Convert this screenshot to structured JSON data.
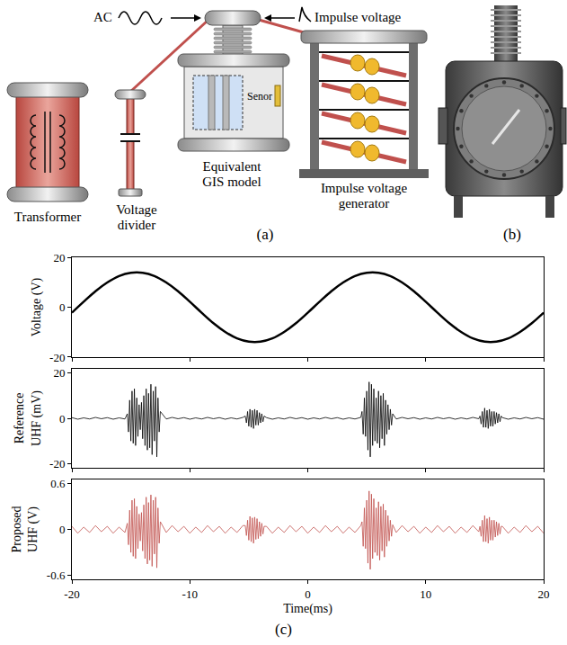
{
  "diagram": {
    "panel_label": "(a)",
    "inputs": {
      "ac": "AC",
      "impulse": "Impulse voltage"
    },
    "components": {
      "transformer": "Transformer",
      "divider": "Voltage divider",
      "gis": "Equivalent GIS model",
      "sensor": "Senor",
      "generator": "Impulse voltage generator"
    }
  },
  "photo": {
    "panel_label": "(b)"
  },
  "charts_panel": {
    "panel_label": "(c)"
  },
  "chart_data": [
    {
      "type": "line",
      "y_label": "Voltage (V)",
      "color": "#000000",
      "grid": false,
      "tick_labels": "y",
      "xlim": [
        -20,
        20
      ],
      "xticks": [
        -20,
        -10,
        0,
        10,
        20
      ],
      "ylim": [
        -20,
        20
      ],
      "yticks": [
        -20,
        0,
        20
      ],
      "x": [
        -20,
        -19,
        -18,
        -17,
        -16,
        -15,
        -14,
        -13,
        -12,
        -11,
        -10,
        -9,
        -8,
        -7,
        -6,
        -5,
        -4,
        -3,
        -2,
        -1,
        0,
        1,
        2,
        3,
        4,
        5,
        6,
        7,
        8,
        9,
        10,
        11,
        12,
        13,
        14,
        15,
        16,
        17,
        18,
        19,
        20
      ],
      "values": [
        -2.2,
        2.2,
        6.4,
        9.9,
        12.5,
        13.8,
        13.8,
        12.5,
        9.9,
        6.4,
        2.2,
        -2.2,
        -6.4,
        -9.9,
        -12.5,
        -13.8,
        -13.8,
        -12.5,
        -9.9,
        -6.4,
        -2.2,
        2.2,
        6.4,
        9.9,
        12.5,
        13.8,
        13.8,
        12.5,
        9.9,
        6.4,
        2.2,
        -2.2,
        -6.4,
        -9.9,
        -12.5,
        -13.8,
        -13.8,
        -12.5,
        -9.9,
        -6.4,
        -2.2
      ]
    },
    {
      "type": "line",
      "y_label": "Reference UHF (mV)",
      "color": "#000000",
      "grid": false,
      "tick_labels": "y",
      "xlim": [
        -20,
        20
      ],
      "xticks": [
        -20,
        -10,
        0,
        10,
        20
      ],
      "ylim": [
        -22,
        22
      ],
      "yticks": [
        -20,
        0,
        20
      ],
      "x": [
        -20,
        -19.5,
        -19,
        -18.5,
        -18,
        -17.5,
        -17,
        -16.5,
        -16,
        -15.5,
        -15.3,
        -15.2,
        -15.1,
        -15,
        -14.9,
        -14.8,
        -14.7,
        -14.6,
        -14.5,
        -14.4,
        -14.3,
        -14.2,
        -14.1,
        -14,
        -13.9,
        -13.8,
        -13.7,
        -13.6,
        -13.5,
        -13.4,
        -13.3,
        -13.2,
        -13.1,
        -13,
        -12.9,
        -12.8,
        -12.7,
        -12.6,
        -12.5,
        -12,
        -11.5,
        -11,
        -10.5,
        -10,
        -9.5,
        -9,
        -8.5,
        -8,
        -7.5,
        -7,
        -6.5,
        -6,
        -5.5,
        -5.3,
        -5.2,
        -5.1,
        -5,
        -4.9,
        -4.8,
        -4.7,
        -4.6,
        -4.5,
        -4.4,
        -4.3,
        -4.2,
        -4.1,
        -4,
        -3.9,
        -3.8,
        -3.7,
        -3.5,
        -3,
        -2.5,
        -2,
        -1.5,
        -1,
        -0.5,
        0,
        0.5,
        1,
        1.5,
        2,
        2.5,
        3,
        3.5,
        4,
        4.5,
        4.6,
        4.7,
        4.8,
        4.9,
        5,
        5.1,
        5.2,
        5.3,
        5.4,
        5.5,
        5.6,
        5.7,
        5.8,
        5.9,
        6,
        6.1,
        6.2,
        6.3,
        6.4,
        6.5,
        6.6,
        6.7,
        6.8,
        6.9,
        7,
        7.1,
        7.2,
        7.5,
        8,
        8.5,
        9,
        9.5,
        10,
        10.5,
        11,
        11.5,
        12,
        12.5,
        13,
        13.5,
        14,
        14.5,
        14.6,
        14.7,
        14.8,
        14.9,
        15,
        15.1,
        15.2,
        15.3,
        15.4,
        15.5,
        15.6,
        15.7,
        15.8,
        15.9,
        16,
        16.1,
        16.2,
        16.3,
        16.4,
        16.5,
        17,
        17.5,
        18,
        18.5,
        19,
        19.5,
        20
      ],
      "values": [
        0.3,
        -0.4,
        0.2,
        -0.3,
        0.4,
        -0.2,
        0.3,
        -0.4,
        0.2,
        -0.3,
        2,
        -6,
        8,
        -10,
        12,
        -11,
        13,
        -12,
        9,
        -8,
        6,
        -5,
        7,
        -9,
        10,
        -12,
        13,
        -14,
        11,
        -13,
        15,
        -16,
        12,
        -10,
        14,
        -17,
        9,
        -6,
        3,
        -0.3,
        0.4,
        -0.2,
        0.3,
        -0.4,
        0.2,
        -0.3,
        0.4,
        -0.2,
        0.3,
        -0.4,
        0.2,
        -0.3,
        0.4,
        1,
        -2,
        3,
        -3.5,
        4,
        -4,
        3.5,
        -4.5,
        4,
        -3,
        3.5,
        -3,
        2.5,
        -2,
        2,
        -1.5,
        1,
        0.3,
        -0.4,
        0.2,
        -0.3,
        0.4,
        -0.2,
        0.3,
        -0.4,
        0.2,
        -0.3,
        0.4,
        -0.2,
        0.3,
        -0.4,
        0.2,
        -0.3,
        0.4,
        3,
        -7,
        9,
        -8,
        12,
        -14,
        16,
        -17,
        15,
        -12,
        13,
        -10,
        9,
        -11,
        12,
        -13,
        10,
        -9,
        11,
        -12,
        8,
        -7,
        6,
        -5,
        4,
        -3,
        2,
        -0.3,
        0.4,
        -0.2,
        0.3,
        -0.4,
        0.2,
        -0.3,
        0.4,
        -0.2,
        0.3,
        -0.4,
        0.2,
        -0.3,
        0.4,
        -0.2,
        1,
        -2.5,
        3,
        -4,
        4.5,
        -4,
        3.5,
        -4.5,
        4,
        -3.5,
        3,
        -3.5,
        3,
        -2.5,
        2.5,
        -2,
        2,
        -1.5,
        1,
        0.3,
        -0.4,
        0.2,
        -0.3,
        0.4,
        -0.2,
        0.3,
        -0.4
      ]
    },
    {
      "type": "line",
      "y_label": "Proposed UHF (V)",
      "x_label": "Time(ms)",
      "color": "#c0504d",
      "grid": false,
      "xlim": [
        -20,
        20
      ],
      "xticks": [
        -20,
        -10,
        0,
        10,
        20
      ],
      "ylim": [
        -0.65,
        0.65
      ],
      "yticks": [
        -0.6,
        0,
        0.6
      ],
      "x": [
        -20,
        -19.5,
        -19,
        -18.5,
        -18,
        -17.5,
        -17,
        -16.5,
        -16,
        -15.5,
        -15.3,
        -15.2,
        -15.1,
        -15,
        -14.9,
        -14.8,
        -14.7,
        -14.6,
        -14.5,
        -14.4,
        -14.3,
        -14.2,
        -14.1,
        -14,
        -13.9,
        -13.8,
        -13.7,
        -13.6,
        -13.5,
        -13.4,
        -13.3,
        -13.2,
        -13.1,
        -13,
        -12.9,
        -12.8,
        -12.7,
        -12.6,
        -12.5,
        -12,
        -11.5,
        -11,
        -10.5,
        -10,
        -9.5,
        -9,
        -8.5,
        -8,
        -7.5,
        -7,
        -6.5,
        -6,
        -5.5,
        -5.3,
        -5.2,
        -5.1,
        -5,
        -4.9,
        -4.8,
        -4.7,
        -4.6,
        -4.5,
        -4.4,
        -4.3,
        -4.2,
        -4.1,
        -4,
        -3.9,
        -3.8,
        -3.7,
        -3.5,
        -3,
        -2.5,
        -2,
        -1.5,
        -1,
        -0.5,
        0,
        0.5,
        1,
        1.5,
        2,
        2.5,
        3,
        3.5,
        4,
        4.5,
        4.6,
        4.7,
        4.8,
        4.9,
        5,
        5.1,
        5.2,
        5.3,
        5.4,
        5.5,
        5.6,
        5.7,
        5.8,
        5.9,
        6,
        6.1,
        6.2,
        6.3,
        6.4,
        6.5,
        6.6,
        6.7,
        6.8,
        6.9,
        7,
        7.1,
        7.2,
        7.5,
        8,
        8.5,
        9,
        9.5,
        10,
        10.5,
        11,
        11.5,
        12,
        12.5,
        13,
        13.5,
        14,
        14.5,
        14.6,
        14.7,
        14.8,
        14.9,
        15,
        15.1,
        15.2,
        15.3,
        15.4,
        15.5,
        15.6,
        15.7,
        15.8,
        15.9,
        16,
        16.1,
        16.2,
        16.3,
        16.4,
        16.5,
        17,
        17.5,
        18,
        18.5,
        19,
        19.5,
        20
      ],
      "values": [
        0.04,
        -0.05,
        0.03,
        -0.04,
        0.05,
        -0.03,
        0.04,
        -0.05,
        0.03,
        -0.04,
        0.08,
        -0.2,
        0.25,
        -0.3,
        0.38,
        -0.35,
        0.4,
        -0.38,
        0.3,
        -0.25,
        0.2,
        -0.15,
        0.22,
        -0.28,
        0.32,
        -0.38,
        0.42,
        -0.45,
        0.35,
        -0.4,
        0.45,
        -0.48,
        0.38,
        -0.32,
        0.42,
        -0.5,
        0.28,
        -0.18,
        0.1,
        -0.04,
        0.05,
        -0.03,
        0.04,
        -0.05,
        0.03,
        -0.04,
        0.05,
        -0.03,
        0.04,
        -0.05,
        0.03,
        -0.04,
        0.05,
        0.05,
        -0.08,
        0.12,
        -0.14,
        0.17,
        -0.16,
        0.15,
        -0.18,
        0.16,
        -0.13,
        0.14,
        -0.12,
        0.1,
        -0.09,
        0.08,
        -0.06,
        0.04,
        0.04,
        -0.05,
        0.03,
        -0.04,
        0.05,
        -0.03,
        0.04,
        -0.05,
        0.03,
        -0.04,
        0.05,
        -0.03,
        0.04,
        -0.05,
        0.03,
        -0.04,
        0.05,
        0.1,
        -0.22,
        0.28,
        -0.25,
        0.38,
        -0.44,
        0.5,
        -0.52,
        0.46,
        -0.38,
        0.4,
        -0.3,
        0.28,
        -0.34,
        0.36,
        -0.4,
        0.3,
        -0.28,
        0.33,
        -0.36,
        0.25,
        -0.22,
        0.18,
        -0.15,
        0.12,
        -0.09,
        0.06,
        -0.04,
        0.05,
        -0.03,
        0.04,
        -0.05,
        0.03,
        -0.04,
        0.05,
        -0.03,
        0.04,
        -0.05,
        0.03,
        -0.04,
        0.05,
        -0.03,
        0.04,
        -0.09,
        0.12,
        -0.16,
        0.18,
        -0.16,
        0.14,
        -0.18,
        0.16,
        -0.14,
        0.12,
        -0.14,
        0.12,
        -0.1,
        0.1,
        -0.08,
        0.08,
        -0.06,
        0.04,
        0.04,
        -0.05,
        0.03,
        -0.04,
        0.05,
        -0.03,
        0.04,
        -0.05
      ]
    }
  ]
}
